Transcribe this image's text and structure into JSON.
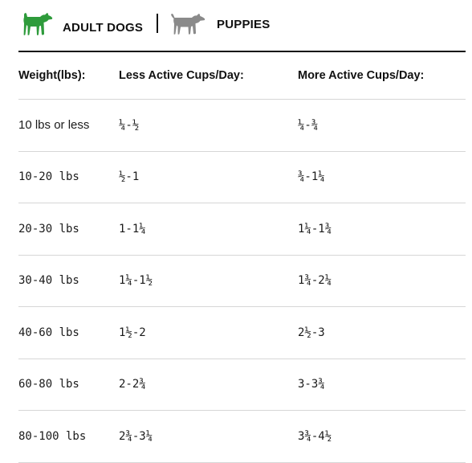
{
  "tabs": {
    "adult": {
      "label": "ADULT DOGS",
      "icon": "dog-icon",
      "color": "#2e9b3b"
    },
    "puppies": {
      "label": "PUPPIES",
      "icon": "puppy-icon",
      "color": "#8a8a8a"
    }
  },
  "table": {
    "headers": [
      "Weight(lbs):",
      "Less Active Cups/Day:",
      "More Active Cups/Day:"
    ],
    "rows": [
      {
        "weight": "10 lbs or less",
        "less": "¼-½",
        "more": "¼-¾"
      },
      {
        "weight": "10-20 lbs",
        "less": "½-1",
        "more": "¾-1¼"
      },
      {
        "weight": "20-30 lbs",
        "less": "1-1¼",
        "more": "1¼-1¾"
      },
      {
        "weight": "30-40 lbs",
        "less": "1¼-1½",
        "more": "1¾-2¼"
      },
      {
        "weight": "40-60 lbs",
        "less": "1½-2",
        "more": "2½-3"
      },
      {
        "weight": "60-80 lbs",
        "less": "2-2¾",
        "more": "3-3¾"
      },
      {
        "weight": "80-100 lbs",
        "less": "2¾-3¼",
        "more": "3¾-4½"
      }
    ]
  }
}
